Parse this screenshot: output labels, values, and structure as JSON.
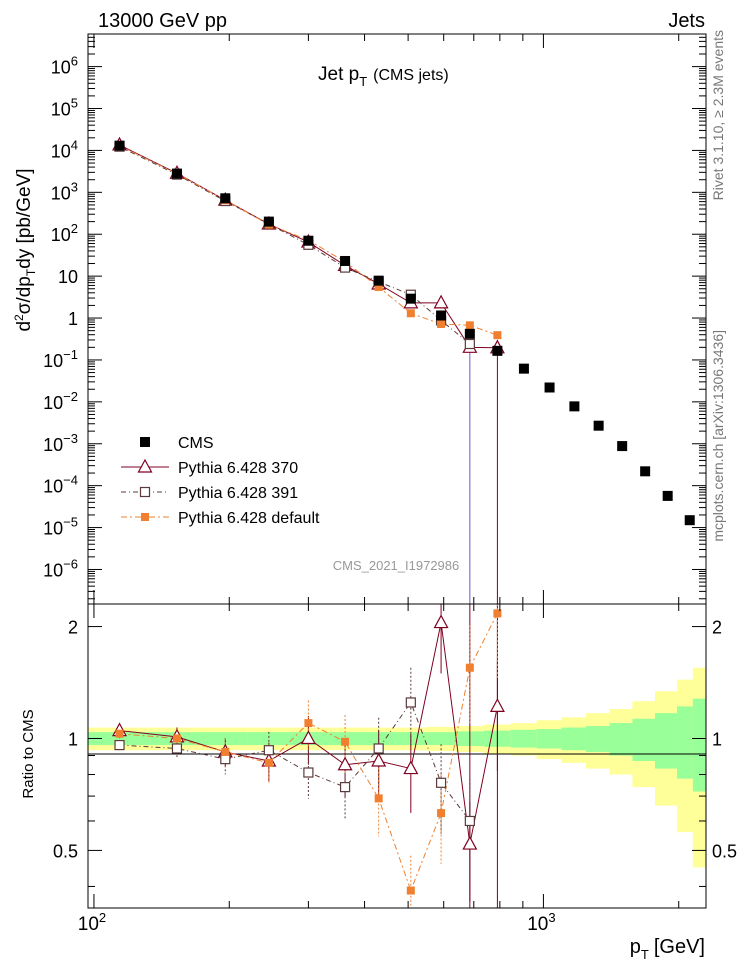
{
  "header": {
    "left": "13000 GeV pp",
    "right": "Jets"
  },
  "side_labels": {
    "rivet": "Rivet 3.1.10, ≥ 2.3M events",
    "mcplots": "mcplots.cern.ch [arXiv:1306.3436]"
  },
  "analysis_id": "CMS_2021_I1972986",
  "chart_data": [
    {
      "type": "line",
      "panel": "main",
      "title": "Jet p_T (CMS jets)",
      "title_main": "Jet p",
      "title_sub": "T",
      "title_extra": "(CMS jets)",
      "ylabel": "d²σ/dp_T dy [pb/GeV]",
      "log_x": true,
      "log_y": true,
      "xlim": [
        97,
        2300
      ],
      "ylim": [
        1.5e-07,
        6000000.0
      ],
      "y_tick_labels": [
        "10^6",
        "10^5",
        "10^4",
        "10^3",
        "10^2",
        "10",
        "1",
        "10^-1",
        "10^-2",
        "10^-3",
        "10^-4",
        "10^-5",
        "10^-6"
      ],
      "legend_position": "bottom-left",
      "series": [
        {
          "name": "CMS",
          "style": "data",
          "color": "#000000",
          "x": [
            114,
            153,
            196,
            245,
            300,
            362,
            430,
            507,
            592,
            686,
            790,
            905,
            1032,
            1172,
            1327,
            1497,
            1684,
            1890,
            2116
          ],
          "y": [
            13000,
            2800,
            720,
            200,
            70,
            23,
            7.8,
            2.9,
            1.15,
            0.42,
            0.165,
            0.062,
            0.022,
            0.0078,
            0.0027,
            0.00088,
            0.00022,
            5.7e-05,
            1.5e-05
          ]
        },
        {
          "name": "Pythia 6.428 370",
          "style": "triangle",
          "color": "#800020",
          "x": [
            114,
            153,
            196,
            245,
            300,
            362,
            430,
            507,
            592,
            686,
            790
          ],
          "y": [
            13500,
            2850,
            650,
            175,
            65,
            18,
            6.5,
            2.3,
            2.3,
            0.2,
            0.195
          ]
        },
        {
          "name": "Pythia 6.428 391",
          "style": "square-open",
          "color": "#5a3a3a",
          "x": [
            114,
            153,
            196,
            245,
            300,
            362,
            430,
            507,
            592,
            686
          ],
          "y": [
            12300,
            2650,
            620,
            175,
            56,
            16,
            7.3,
            3.6,
            0.88,
            0.24
          ]
        },
        {
          "name": "Pythia 6.428 default",
          "style": "square-filled",
          "color": "#f08030",
          "x": [
            114,
            153,
            196,
            245,
            300,
            362,
            430,
            507,
            592,
            686,
            790
          ],
          "y": [
            13000,
            2800,
            650,
            170,
            72,
            22,
            5.5,
            1.3,
            0.72,
            0.67,
            0.39
          ]
        }
      ]
    },
    {
      "type": "line",
      "panel": "ratio",
      "ylabel": "Ratio to CMS",
      "xlabel": "p_T [GeV]",
      "xlabel_main": "p",
      "xlabel_sub": "T",
      "xlabel_unit": "[GeV]",
      "log_x": true,
      "xlim": [
        97,
        2300
      ],
      "ylim": [
        0.35,
        2.3
      ],
      "y_tick_labels": [
        "2",
        "1",
        "0.5"
      ],
      "x_tick_labels": [
        "10^2",
        "10^3"
      ],
      "band_bins": [
        97,
        133,
        174,
        220,
        272,
        330,
        395,
        468,
        549,
        638,
        737,
        846,
        966,
        1098,
        1243,
        1403,
        1578,
        1771,
        1983,
        2150,
        2300
      ],
      "band_inner": [
        0.04,
        0.04,
        0.04,
        0.04,
        0.04,
        0.04,
        0.04,
        0.04,
        0.04,
        0.045,
        0.05,
        0.055,
        0.06,
        0.07,
        0.08,
        0.1,
        0.13,
        0.17,
        0.22,
        0.28
      ],
      "band_outer": [
        0.07,
        0.07,
        0.07,
        0.07,
        0.07,
        0.07,
        0.07,
        0.07,
        0.075,
        0.08,
        0.09,
        0.1,
        0.12,
        0.14,
        0.17,
        0.2,
        0.26,
        0.34,
        0.44,
        0.55
      ],
      "series": [
        {
          "name": "Pythia 6.428 370",
          "x": [
            114,
            153,
            196,
            245,
            300,
            362,
            430,
            507,
            592,
            686,
            790
          ],
          "y": [
            1.05,
            1.01,
            0.92,
            0.87,
            1.0,
            0.85,
            0.87,
            0.83,
            2.05,
            0.52,
            1.22
          ]
        },
        {
          "name": "Pythia 6.428 391",
          "x": [
            114,
            153,
            196,
            245,
            300,
            362,
            430,
            507,
            592,
            686
          ],
          "y": [
            0.96,
            0.94,
            0.88,
            0.93,
            0.81,
            0.74,
            0.94,
            1.25,
            0.76,
            0.6
          ]
        },
        {
          "name": "Pythia 6.428 default",
          "x": [
            114,
            153,
            196,
            245,
            300,
            362,
            430,
            507,
            592,
            686,
            790
          ],
          "y": [
            1.03,
            1.0,
            0.92,
            0.86,
            1.1,
            0.98,
            0.69,
            0.39,
            0.63,
            1.55,
            2.17
          ]
        }
      ]
    }
  ]
}
